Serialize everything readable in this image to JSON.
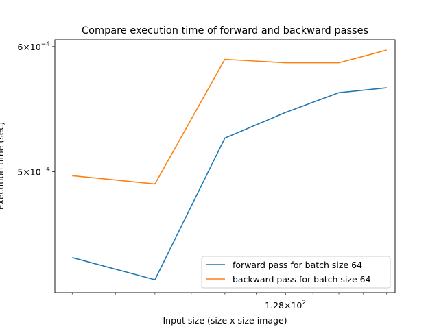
{
  "chart_data": {
    "type": "line",
    "title": "Compare execution time of forward and backward passes",
    "xlabel": "Input size (size x size image)",
    "ylabel": "Execution time (sec)",
    "xscale": "log",
    "yscale": "log",
    "x": [
      80,
      96,
      112,
      128,
      144,
      160
    ],
    "xlim": [
      77,
      163
    ],
    "ylim": [
      0.000419,
      0.000606
    ],
    "xtick_labels": [
      {
        "x": 128,
        "base": "1.28",
        "exp": "2"
      }
    ],
    "ytick_labels": [
      {
        "y": 0.0005,
        "base": "5",
        "exp": "−4"
      },
      {
        "y": 0.0006,
        "base": "6",
        "exp": "−4"
      }
    ],
    "grid": false,
    "legend_position": "lower-right",
    "series": [
      {
        "name": "forward pass for batch size 64",
        "color": "#1f77b4",
        "values": [
          0.000441,
          0.000427,
          0.000525,
          0.000545,
          0.000561,
          0.000565
        ]
      },
      {
        "name": "backward pass for batch size 64",
        "color": "#ff7f0e",
        "values": [
          0.000497,
          0.000491,
          0.000589,
          0.000586,
          0.000586,
          0.000597
        ]
      }
    ]
  }
}
